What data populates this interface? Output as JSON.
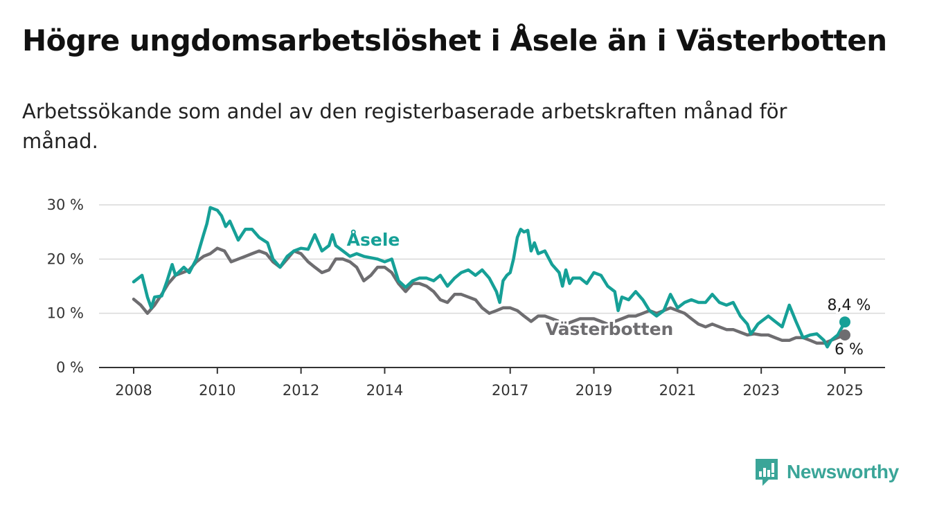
{
  "title": "Högre ungdomsarbetslöshet i Åsele än i Västerbotten",
  "subtitle": "Arbetssökande som andel av den registerbaserade arbetskraften månad för månad.",
  "brand": {
    "name": "Newsworthy",
    "icon": "newsworthy-logo-icon",
    "color": "#3aa598"
  },
  "chart_data": {
    "type": "line",
    "title": "",
    "xlabel": "",
    "ylabel": "",
    "ylim": [
      0,
      30
    ],
    "xlim": [
      2008.0,
      2025.0
    ],
    "y_ticks": [
      0,
      10,
      20,
      30
    ],
    "y_tick_labels": [
      "0 %",
      "10 %",
      "20 %",
      "30 %"
    ],
    "x_ticks": [
      2008,
      2010,
      2012,
      2014,
      2017,
      2019,
      2021,
      2023,
      2025
    ],
    "x_tick_labels": [
      "2008",
      "2010",
      "2012",
      "2014",
      "2017",
      "2019",
      "2021",
      "2023",
      "2025"
    ],
    "grid": true,
    "legend": "direct labels on lines",
    "series": [
      {
        "name": "Åsele",
        "color": "#16a097",
        "end_label": "8,4 %",
        "points": [
          [
            2008.0,
            15.8
          ],
          [
            2008.2,
            17.0
          ],
          [
            2008.33,
            13.0
          ],
          [
            2008.42,
            11.0
          ],
          [
            2008.5,
            13.0
          ],
          [
            2008.67,
            13.2
          ],
          [
            2008.8,
            16.0
          ],
          [
            2008.92,
            19.0
          ],
          [
            2009.0,
            17.0
          ],
          [
            2009.2,
            18.5
          ],
          [
            2009.33,
            17.5
          ],
          [
            2009.5,
            20.0
          ],
          [
            2009.67,
            24.5
          ],
          [
            2009.75,
            26.5
          ],
          [
            2009.83,
            29.5
          ],
          [
            2010.0,
            29.0
          ],
          [
            2010.1,
            28.0
          ],
          [
            2010.2,
            26.0
          ],
          [
            2010.3,
            27.0
          ],
          [
            2010.5,
            23.5
          ],
          [
            2010.67,
            25.5
          ],
          [
            2010.83,
            25.5
          ],
          [
            2011.0,
            24.0
          ],
          [
            2011.2,
            23.0
          ],
          [
            2011.33,
            20.0
          ],
          [
            2011.5,
            18.5
          ],
          [
            2011.67,
            20.5
          ],
          [
            2011.83,
            21.5
          ],
          [
            2012.0,
            22.0
          ],
          [
            2012.17,
            21.8
          ],
          [
            2012.33,
            24.5
          ],
          [
            2012.5,
            21.5
          ],
          [
            2012.67,
            22.5
          ],
          [
            2012.75,
            24.5
          ],
          [
            2012.83,
            22.5
          ],
          [
            2013.0,
            21.5
          ],
          [
            2013.17,
            20.5
          ],
          [
            2013.33,
            21.0
          ],
          [
            2013.5,
            20.5
          ],
          [
            2013.83,
            20.0
          ],
          [
            2014.0,
            19.5
          ],
          [
            2014.17,
            20.0
          ],
          [
            2014.33,
            16.0
          ],
          [
            2014.5,
            14.8
          ],
          [
            2014.67,
            16.0
          ],
          [
            2014.83,
            16.5
          ],
          [
            2015.0,
            16.5
          ],
          [
            2015.17,
            16.0
          ],
          [
            2015.33,
            17.0
          ],
          [
            2015.5,
            15.0
          ],
          [
            2015.67,
            16.5
          ],
          [
            2015.83,
            17.5
          ],
          [
            2016.0,
            18.0
          ],
          [
            2016.17,
            17.0
          ],
          [
            2016.33,
            18.0
          ],
          [
            2016.5,
            16.5
          ],
          [
            2016.67,
            14.0
          ],
          [
            2016.75,
            12.0
          ],
          [
            2016.83,
            16.0
          ],
          [
            2016.92,
            17.0
          ],
          [
            2017.0,
            17.5
          ],
          [
            2017.08,
            20.0
          ],
          [
            2017.17,
            24.0
          ],
          [
            2017.25,
            25.5
          ],
          [
            2017.33,
            25.0
          ],
          [
            2017.42,
            25.3
          ],
          [
            2017.5,
            21.5
          ],
          [
            2017.58,
            23.0
          ],
          [
            2017.67,
            21.0
          ],
          [
            2017.83,
            21.5
          ],
          [
            2018.0,
            19.0
          ],
          [
            2018.17,
            17.5
          ],
          [
            2018.25,
            15.0
          ],
          [
            2018.33,
            18.0
          ],
          [
            2018.42,
            15.5
          ],
          [
            2018.5,
            16.5
          ],
          [
            2018.67,
            16.5
          ],
          [
            2018.83,
            15.5
          ],
          [
            2019.0,
            17.5
          ],
          [
            2019.17,
            17.0
          ],
          [
            2019.33,
            15.0
          ],
          [
            2019.5,
            14.0
          ],
          [
            2019.58,
            10.5
          ],
          [
            2019.67,
            13.0
          ],
          [
            2019.83,
            12.5
          ],
          [
            2020.0,
            14.0
          ],
          [
            2020.17,
            12.5
          ],
          [
            2020.33,
            10.5
          ],
          [
            2020.5,
            9.5
          ],
          [
            2020.67,
            10.5
          ],
          [
            2020.83,
            13.5
          ],
          [
            2021.0,
            11.0
          ],
          [
            2021.17,
            12.0
          ],
          [
            2021.33,
            12.5
          ],
          [
            2021.5,
            12.0
          ],
          [
            2021.67,
            12.0
          ],
          [
            2021.83,
            13.5
          ],
          [
            2022.0,
            12.0
          ],
          [
            2022.17,
            11.5
          ],
          [
            2022.33,
            12.0
          ],
          [
            2022.5,
            9.5
          ],
          [
            2022.67,
            8.0
          ],
          [
            2022.75,
            6.2
          ],
          [
            2022.83,
            7.0
          ],
          [
            2022.92,
            8.0
          ],
          [
            2023.0,
            8.5
          ],
          [
            2023.17,
            9.5
          ],
          [
            2023.33,
            8.5
          ],
          [
            2023.5,
            7.5
          ],
          [
            2023.67,
            11.5
          ],
          [
            2023.83,
            8.5
          ],
          [
            2024.0,
            5.5
          ],
          [
            2024.17,
            6.0
          ],
          [
            2024.33,
            6.2
          ],
          [
            2024.5,
            5.0
          ],
          [
            2024.58,
            3.8
          ],
          [
            2024.67,
            5.0
          ],
          [
            2024.83,
            6.0
          ],
          [
            2025.0,
            8.4
          ]
        ]
      },
      {
        "name": "Västerbotten",
        "color": "#6e6d70",
        "end_label": "6 %",
        "points": [
          [
            2008.0,
            12.6
          ],
          [
            2008.17,
            11.5
          ],
          [
            2008.33,
            10.0
          ],
          [
            2008.5,
            11.5
          ],
          [
            2008.67,
            13.5
          ],
          [
            2008.83,
            15.5
          ],
          [
            2009.0,
            17.0
          ],
          [
            2009.17,
            17.5
          ],
          [
            2009.33,
            18.0
          ],
          [
            2009.5,
            19.5
          ],
          [
            2009.67,
            20.5
          ],
          [
            2009.83,
            21.0
          ],
          [
            2010.0,
            22.0
          ],
          [
            2010.17,
            21.5
          ],
          [
            2010.33,
            19.5
          ],
          [
            2010.5,
            20.0
          ],
          [
            2010.67,
            20.5
          ],
          [
            2010.83,
            21.0
          ],
          [
            2011.0,
            21.5
          ],
          [
            2011.17,
            21.0
          ],
          [
            2011.33,
            19.5
          ],
          [
            2011.5,
            18.5
          ],
          [
            2011.67,
            20.0
          ],
          [
            2011.83,
            21.5
          ],
          [
            2012.0,
            21.0
          ],
          [
            2012.17,
            19.5
          ],
          [
            2012.33,
            18.5
          ],
          [
            2012.5,
            17.5
          ],
          [
            2012.67,
            18.0
          ],
          [
            2012.83,
            20.0
          ],
          [
            2013.0,
            20.0
          ],
          [
            2013.17,
            19.5
          ],
          [
            2013.33,
            18.5
          ],
          [
            2013.5,
            16.0
          ],
          [
            2013.67,
            17.0
          ],
          [
            2013.83,
            18.5
          ],
          [
            2014.0,
            18.5
          ],
          [
            2014.17,
            17.5
          ],
          [
            2014.33,
            15.5
          ],
          [
            2014.5,
            14.0
          ],
          [
            2014.67,
            15.5
          ],
          [
            2014.83,
            15.5
          ],
          [
            2015.0,
            15.0
          ],
          [
            2015.17,
            14.0
          ],
          [
            2015.33,
            12.5
          ],
          [
            2015.5,
            12.0
          ],
          [
            2015.67,
            13.5
          ],
          [
            2015.83,
            13.5
          ],
          [
            2016.0,
            13.0
          ],
          [
            2016.17,
            12.5
          ],
          [
            2016.33,
            11.0
          ],
          [
            2016.5,
            10.0
          ],
          [
            2016.67,
            10.5
          ],
          [
            2016.83,
            11.0
          ],
          [
            2017.0,
            11.0
          ],
          [
            2017.17,
            10.5
          ],
          [
            2017.33,
            9.5
          ],
          [
            2017.5,
            8.5
          ],
          [
            2017.67,
            9.5
          ],
          [
            2017.83,
            9.5
          ],
          [
            2018.0,
            9.0
          ],
          [
            2018.17,
            8.5
          ],
          [
            2018.33,
            8.0
          ],
          [
            2018.5,
            8.5
          ],
          [
            2018.67,
            9.0
          ],
          [
            2018.83,
            9.0
          ],
          [
            2019.0,
            9.0
          ],
          [
            2019.17,
            8.5
          ],
          [
            2019.33,
            8.0
          ],
          [
            2019.5,
            8.5
          ],
          [
            2019.67,
            9.0
          ],
          [
            2019.83,
            9.5
          ],
          [
            2020.0,
            9.5
          ],
          [
            2020.17,
            10.0
          ],
          [
            2020.33,
            10.5
          ],
          [
            2020.5,
            10.0
          ],
          [
            2020.67,
            10.5
          ],
          [
            2020.83,
            11.0
          ],
          [
            2021.0,
            10.5
          ],
          [
            2021.17,
            10.0
          ],
          [
            2021.33,
            9.0
          ],
          [
            2021.5,
            8.0
          ],
          [
            2021.67,
            7.5
          ],
          [
            2021.83,
            8.0
          ],
          [
            2022.0,
            7.5
          ],
          [
            2022.17,
            7.0
          ],
          [
            2022.33,
            7.0
          ],
          [
            2022.5,
            6.5
          ],
          [
            2022.67,
            6.0
          ],
          [
            2022.83,
            6.2
          ],
          [
            2023.0,
            6.0
          ],
          [
            2023.17,
            6.0
          ],
          [
            2023.33,
            5.5
          ],
          [
            2023.5,
            5.0
          ],
          [
            2023.67,
            5.0
          ],
          [
            2023.83,
            5.5
          ],
          [
            2024.0,
            5.5
          ],
          [
            2024.17,
            5.0
          ],
          [
            2024.33,
            4.5
          ],
          [
            2024.5,
            4.5
          ],
          [
            2024.67,
            5.0
          ],
          [
            2024.83,
            5.5
          ],
          [
            2025.0,
            6.0
          ]
        ]
      }
    ]
  }
}
